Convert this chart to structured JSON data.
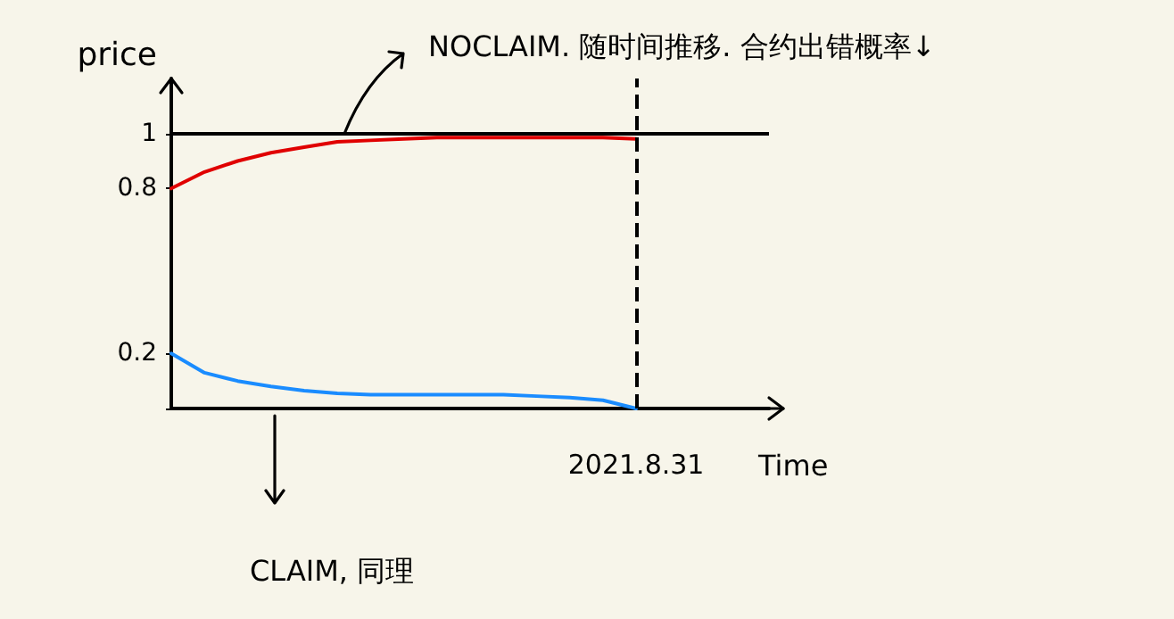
{
  "chart_data": {
    "type": "line",
    "xlabel": "Time",
    "ylabel": "price",
    "categories": [
      null,
      null,
      null,
      null,
      null,
      null,
      null,
      null,
      null,
      null,
      null,
      null,
      null,
      null,
      "2021.8.31",
      null,
      null,
      null,
      null
    ],
    "series": [
      {
        "color": "#e00000",
        "values": [
          0.8,
          0.86,
          0.9,
          0.93,
          0.95,
          0.97,
          0.975,
          0.98,
          0.985,
          0.985,
          0.985,
          0.985,
          0.985,
          0.985,
          0.98,
          null,
          null,
          null,
          null
        ]
      },
      {
        "color": "#1a8cff",
        "values": [
          0.2,
          0.13,
          0.1,
          0.08,
          0.065,
          0.055,
          0.05,
          0.05,
          0.05,
          0.05,
          0.05,
          0.045,
          0.04,
          0.03,
          0,
          null,
          null,
          null,
          null
        ]
      }
    ],
    "ylim": [
      0,
      1.2
    ],
    "yticks": [
      {
        "value": 0,
        "label": null
      },
      0.2,
      0.8,
      1
    ],
    "ref_lines": [
      {
        "axis": "y",
        "value": 1,
        "color": "#000000",
        "line_style": "solid"
      },
      {
        "axis": "x",
        "value": "2021.8.31",
        "color": "#000000",
        "line_style": "dashed"
      }
    ],
    "annotations": [
      "NOCLAIM. 随时间推移. 合约出错概率↓",
      "CLAIM, 同理"
    ],
    "grid": false,
    "marker": "none",
    "line_style": "solid"
  }
}
